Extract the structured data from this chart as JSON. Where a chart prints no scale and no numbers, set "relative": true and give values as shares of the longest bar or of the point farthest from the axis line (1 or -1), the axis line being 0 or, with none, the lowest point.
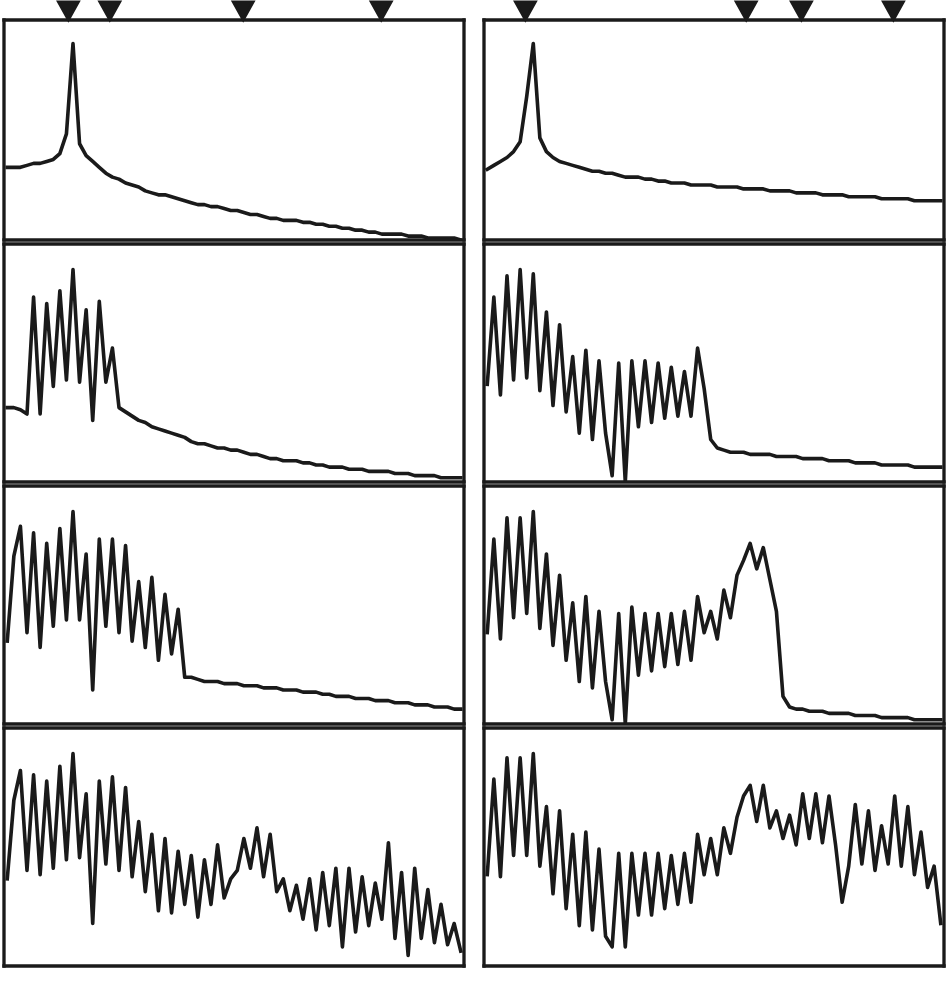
{
  "chart_data": [
    {
      "type": "line",
      "relative": true,
      "color": "#1a1a1a",
      "categories": [
        null,
        null,
        null,
        null,
        null,
        null,
        null,
        null,
        null,
        null,
        null,
        null,
        null,
        null,
        null,
        null,
        null,
        null,
        null,
        null,
        null,
        null,
        null,
        null,
        null,
        null,
        null,
        null,
        null,
        null,
        null,
        null,
        null,
        null,
        null,
        null,
        null,
        null,
        null,
        null,
        null,
        null,
        null,
        null,
        null,
        null,
        null,
        null,
        null,
        null,
        null,
        null,
        null,
        null,
        null,
        null,
        null,
        null,
        null,
        null,
        null,
        null,
        null,
        null,
        null,
        null,
        null,
        null,
        null,
        null
      ],
      "values": [
        0.37,
        0.37,
        0.37,
        0.38,
        0.39,
        0.39,
        0.4,
        0.41,
        0.44,
        0.54,
        1,
        0.49,
        0.43,
        0.4,
        0.37,
        0.34,
        0.32,
        0.31,
        0.29,
        0.28,
        0.27,
        0.25,
        0.24,
        0.23,
        0.23,
        0.22,
        0.21,
        0.2,
        0.19,
        0.18,
        0.18,
        0.17,
        0.17,
        0.16,
        0.15,
        0.15,
        0.14,
        0.13,
        0.13,
        0.12,
        0.11,
        0.11,
        0.1,
        0.1,
        0.1,
        0.09,
        0.09,
        0.08,
        0.08,
        0.07,
        0.07,
        0.06,
        0.06,
        0.05,
        0.05,
        0.04,
        0.04,
        0.03,
        0.03,
        0.03,
        0.03,
        0.02,
        0.02,
        0.02,
        0.01,
        0.01,
        0.01,
        0.01,
        0.01,
        0
      ]
    },
    {
      "type": "line",
      "relative": true,
      "color": "#1a1a1a",
      "categories": [
        null,
        null,
        null,
        null,
        null,
        null,
        null,
        null,
        null,
        null,
        null,
        null,
        null,
        null,
        null,
        null,
        null,
        null,
        null,
        null,
        null,
        null,
        null,
        null,
        null,
        null,
        null,
        null,
        null,
        null,
        null,
        null,
        null,
        null,
        null,
        null,
        null,
        null,
        null,
        null,
        null,
        null,
        null,
        null,
        null,
        null,
        null,
        null,
        null,
        null,
        null,
        null,
        null,
        null,
        null,
        null,
        null,
        null,
        null,
        null,
        null,
        null,
        null,
        null,
        null,
        null,
        null,
        null,
        null,
        null
      ],
      "values": [
        0.36,
        0.38,
        0.4,
        0.42,
        0.45,
        0.5,
        0.73,
        1,
        0.52,
        0.45,
        0.42,
        0.4,
        0.39,
        0.38,
        0.37,
        0.36,
        0.35,
        0.35,
        0.34,
        0.34,
        0.33,
        0.32,
        0.32,
        0.32,
        0.31,
        0.31,
        0.3,
        0.3,
        0.29,
        0.29,
        0.29,
        0.28,
        0.28,
        0.28,
        0.28,
        0.27,
        0.27,
        0.27,
        0.27,
        0.26,
        0.26,
        0.26,
        0.26,
        0.25,
        0.25,
        0.25,
        0.25,
        0.24,
        0.24,
        0.24,
        0.24,
        0.23,
        0.23,
        0.23,
        0.23,
        0.22,
        0.22,
        0.22,
        0.22,
        0.22,
        0.21,
        0.21,
        0.21,
        0.21,
        0.21,
        0.2,
        0.2,
        0.2,
        0.2,
        0.2
      ]
    },
    {
      "type": "line",
      "relative": true,
      "color": "#1a1a1a",
      "categories": [
        null,
        null,
        null,
        null,
        null,
        null,
        null,
        null,
        null,
        null,
        null,
        null,
        null,
        null,
        null,
        null,
        null,
        null,
        null,
        null,
        null,
        null,
        null,
        null,
        null,
        null,
        null,
        null,
        null,
        null,
        null,
        null,
        null,
        null,
        null,
        null,
        null,
        null,
        null,
        null,
        null,
        null,
        null,
        null,
        null,
        null,
        null,
        null,
        null,
        null,
        null,
        null,
        null,
        null,
        null,
        null,
        null,
        null,
        null,
        null,
        null,
        null,
        null,
        null,
        null,
        null,
        null,
        null,
        null,
        null
      ],
      "values": [
        0.35,
        0.35,
        0.34,
        0.32,
        0.87,
        0.32,
        0.84,
        0.45,
        0.9,
        0.48,
        1,
        0.47,
        0.81,
        0.29,
        0.85,
        0.47,
        0.63,
        0.35,
        0.33,
        0.31,
        0.29,
        0.28,
        0.26,
        0.25,
        0.24,
        0.23,
        0.22,
        0.21,
        0.19,
        0.18,
        0.18,
        0.17,
        0.16,
        0.16,
        0.15,
        0.15,
        0.14,
        0.13,
        0.13,
        0.12,
        0.11,
        0.11,
        0.1,
        0.1,
        0.1,
        0.09,
        0.09,
        0.08,
        0.08,
        0.07,
        0.07,
        0.07,
        0.06,
        0.06,
        0.06,
        0.05,
        0.05,
        0.05,
        0.05,
        0.04,
        0.04,
        0.04,
        0.03,
        0.03,
        0.03,
        0.03,
        0.02,
        0.02,
        0.02,
        0.02
      ]
    },
    {
      "type": "line",
      "relative": true,
      "color": "#1a1a1a",
      "categories": [
        null,
        null,
        null,
        null,
        null,
        null,
        null,
        null,
        null,
        null,
        null,
        null,
        null,
        null,
        null,
        null,
        null,
        null,
        null,
        null,
        null,
        null,
        null,
        null,
        null,
        null,
        null,
        null,
        null,
        null,
        null,
        null,
        null,
        null,
        null,
        null,
        null,
        null,
        null,
        null,
        null,
        null,
        null,
        null,
        null,
        null,
        null,
        null,
        null,
        null,
        null,
        null,
        null,
        null,
        null,
        null,
        null,
        null,
        null,
        null,
        null,
        null,
        null,
        null,
        null,
        null,
        null,
        null,
        null,
        null
      ],
      "values": [
        0.46,
        0.87,
        0.41,
        0.97,
        0.48,
        1,
        0.49,
        0.98,
        0.43,
        0.8,
        0.36,
        0.74,
        0.33,
        0.59,
        0.23,
        0.62,
        0.2,
        0.57,
        0.23,
        0.03,
        0.56,
        0,
        0.57,
        0.26,
        0.57,
        0.28,
        0.56,
        0.3,
        0.54,
        0.31,
        0.52,
        0.31,
        0.63,
        0.44,
        0.2,
        0.16,
        0.15,
        0.14,
        0.14,
        0.14,
        0.13,
        0.13,
        0.13,
        0.13,
        0.12,
        0.12,
        0.12,
        0.12,
        0.11,
        0.11,
        0.11,
        0.11,
        0.1,
        0.1,
        0.1,
        0.1,
        0.09,
        0.09,
        0.09,
        0.09,
        0.08,
        0.08,
        0.08,
        0.08,
        0.08,
        0.07,
        0.07,
        0.07,
        0.07,
        0.07
      ]
    },
    {
      "type": "line",
      "relative": true,
      "color": "#1a1a1a",
      "categories": [
        null,
        null,
        null,
        null,
        null,
        null,
        null,
        null,
        null,
        null,
        null,
        null,
        null,
        null,
        null,
        null,
        null,
        null,
        null,
        null,
        null,
        null,
        null,
        null,
        null,
        null,
        null,
        null,
        null,
        null,
        null,
        null,
        null,
        null,
        null,
        null,
        null,
        null,
        null,
        null,
        null,
        null,
        null,
        null,
        null,
        null,
        null,
        null,
        null,
        null,
        null,
        null,
        null,
        null,
        null,
        null,
        null,
        null,
        null,
        null,
        null,
        null,
        null,
        null,
        null,
        null,
        null,
        null,
        null,
        null
      ],
      "values": [
        0.39,
        0.79,
        0.93,
        0.43,
        0.9,
        0.36,
        0.85,
        0.46,
        0.92,
        0.49,
        1,
        0.49,
        0.8,
        0.16,
        0.87,
        0.46,
        0.87,
        0.43,
        0.84,
        0.39,
        0.67,
        0.36,
        0.69,
        0.3,
        0.61,
        0.33,
        0.54,
        0.22,
        0.22,
        0.21,
        0.2,
        0.2,
        0.2,
        0.19,
        0.19,
        0.19,
        0.18,
        0.18,
        0.18,
        0.17,
        0.17,
        0.17,
        0.16,
        0.16,
        0.16,
        0.15,
        0.15,
        0.15,
        0.14,
        0.14,
        0.13,
        0.13,
        0.13,
        0.12,
        0.12,
        0.12,
        0.11,
        0.11,
        0.11,
        0.1,
        0.1,
        0.1,
        0.09,
        0.09,
        0.09,
        0.08,
        0.08,
        0.08,
        0.07,
        0.07
      ]
    },
    {
      "type": "line",
      "relative": true,
      "color": "#1a1a1a",
      "categories": [
        null,
        null,
        null,
        null,
        null,
        null,
        null,
        null,
        null,
        null,
        null,
        null,
        null,
        null,
        null,
        null,
        null,
        null,
        null,
        null,
        null,
        null,
        null,
        null,
        null,
        null,
        null,
        null,
        null,
        null,
        null,
        null,
        null,
        null,
        null,
        null,
        null,
        null,
        null,
        null,
        null,
        null,
        null,
        null,
        null,
        null,
        null,
        null,
        null,
        null,
        null,
        null,
        null,
        null,
        null,
        null,
        null,
        null,
        null,
        null,
        null,
        null,
        null,
        null,
        null,
        null,
        null,
        null,
        null,
        null
      ],
      "values": [
        0.43,
        0.87,
        0.4,
        0.97,
        0.5,
        0.97,
        0.52,
        1,
        0.45,
        0.8,
        0.37,
        0.7,
        0.3,
        0.57,
        0.2,
        0.6,
        0.17,
        0.53,
        0.2,
        0.02,
        0.52,
        0,
        0.55,
        0.23,
        0.52,
        0.25,
        0.52,
        0.27,
        0.52,
        0.28,
        0.53,
        0.3,
        0.6,
        0.43,
        0.53,
        0.4,
        0.63,
        0.5,
        0.7,
        0.77,
        0.85,
        0.73,
        0.83,
        0.68,
        0.53,
        0.13,
        0.08,
        0.07,
        0.07,
        0.06,
        0.06,
        0.06,
        0.05,
        0.05,
        0.05,
        0.05,
        0.04,
        0.04,
        0.04,
        0.04,
        0.03,
        0.03,
        0.03,
        0.03,
        0.03,
        0.02,
        0.02,
        0.02,
        0.02,
        0.02
      ]
    },
    {
      "type": "line",
      "relative": true,
      "color": "#1a1a1a",
      "categories": [
        null,
        null,
        null,
        null,
        null,
        null,
        null,
        null,
        null,
        null,
        null,
        null,
        null,
        null,
        null,
        null,
        null,
        null,
        null,
        null,
        null,
        null,
        null,
        null,
        null,
        null,
        null,
        null,
        null,
        null,
        null,
        null,
        null,
        null,
        null,
        null,
        null,
        null,
        null,
        null,
        null,
        null,
        null,
        null,
        null,
        null,
        null,
        null,
        null,
        null,
        null,
        null,
        null,
        null,
        null,
        null,
        null,
        null,
        null,
        null,
        null,
        null,
        null,
        null,
        null,
        null,
        null,
        null,
        null,
        null
      ],
      "values": [
        0.41,
        0.78,
        0.92,
        0.45,
        0.9,
        0.43,
        0.87,
        0.46,
        0.94,
        0.5,
        1,
        0.51,
        0.81,
        0.2,
        0.87,
        0.48,
        0.89,
        0.45,
        0.84,
        0.42,
        0.68,
        0.35,
        0.62,
        0.26,
        0.6,
        0.25,
        0.54,
        0.29,
        0.52,
        0.23,
        0.5,
        0.29,
        0.57,
        0.32,
        0.41,
        0.45,
        0.6,
        0.46,
        0.65,
        0.42,
        0.62,
        0.35,
        0.41,
        0.26,
        0.38,
        0.22,
        0.41,
        0.17,
        0.44,
        0.19,
        0.46,
        0.09,
        0.46,
        0.16,
        0.42,
        0.19,
        0.39,
        0.22,
        0.58,
        0.13,
        0.44,
        0.05,
        0.46,
        0.13,
        0.36,
        0.11,
        0.29,
        0.1,
        0.2,
        0.07
      ]
    },
    {
      "type": "line",
      "relative": true,
      "color": "#1a1a1a",
      "categories": [
        null,
        null,
        null,
        null,
        null,
        null,
        null,
        null,
        null,
        null,
        null,
        null,
        null,
        null,
        null,
        null,
        null,
        null,
        null,
        null,
        null,
        null,
        null,
        null,
        null,
        null,
        null,
        null,
        null,
        null,
        null,
        null,
        null,
        null,
        null,
        null,
        null,
        null,
        null,
        null,
        null,
        null,
        null,
        null,
        null,
        null,
        null,
        null,
        null,
        null,
        null,
        null,
        null,
        null,
        null,
        null,
        null,
        null,
        null,
        null,
        null,
        null,
        null,
        null,
        null,
        null,
        null,
        null,
        null,
        null
      ],
      "values": [
        0.43,
        0.88,
        0.42,
        0.98,
        0.52,
        0.98,
        0.52,
        1,
        0.47,
        0.75,
        0.34,
        0.73,
        0.27,
        0.62,
        0.19,
        0.63,
        0.17,
        0.55,
        0.14,
        0.09,
        0.53,
        0.09,
        0.53,
        0.24,
        0.53,
        0.24,
        0.53,
        0.27,
        0.52,
        0.29,
        0.53,
        0.3,
        0.62,
        0.43,
        0.6,
        0.43,
        0.65,
        0.53,
        0.7,
        0.8,
        0.85,
        0.68,
        0.85,
        0.65,
        0.73,
        0.6,
        0.71,
        0.57,
        0.81,
        0.6,
        0.81,
        0.58,
        0.8,
        0.57,
        0.3,
        0.47,
        0.76,
        0.48,
        0.73,
        0.45,
        0.66,
        0.48,
        0.8,
        0.47,
        0.75,
        0.43,
        0.63,
        0.37,
        0.47,
        0.2
      ]
    }
  ]
}
